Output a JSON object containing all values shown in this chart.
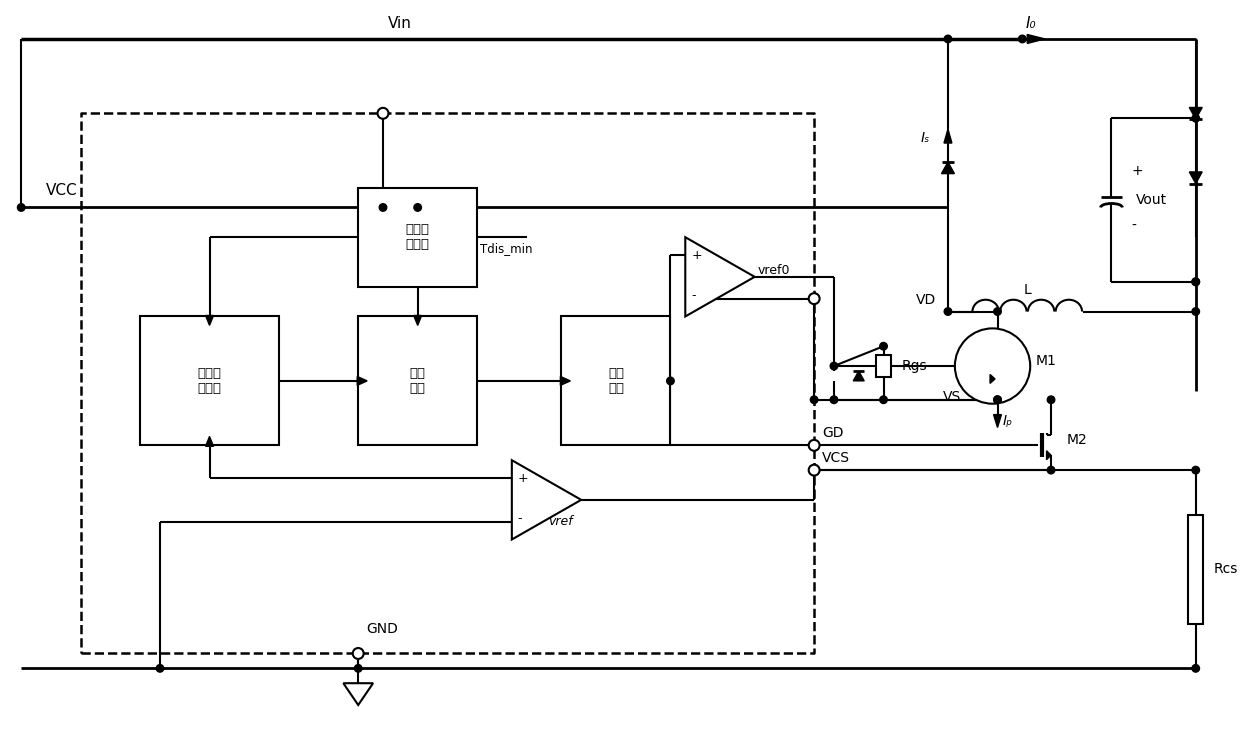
{
  "bg_color": "#ffffff",
  "line_color": "#000000",
  "labels": {
    "Vin": "Vin",
    "IO": "I₀",
    "IS": "Iₛ",
    "VCC": "VCC",
    "GND": "GND",
    "VD": "VD",
    "L": "L",
    "Vout": "Vout",
    "M1": "M1",
    "M2": "M2",
    "Rgs": "Rgs",
    "Rcs": "Rcs",
    "VS": "VS",
    "GD": "GD",
    "VCS": "VCS",
    "vref0": "vref0",
    "vref": "vref",
    "Tdis_min": "Tdis_min",
    "IP": "Iₚ",
    "plus": "+",
    "minus": "-",
    "box1": "恒流控\n制单元",
    "box2": "逻辑\n电路",
    "box3": "驱动\n单元",
    "box4": "状态检\n测单元"
  }
}
